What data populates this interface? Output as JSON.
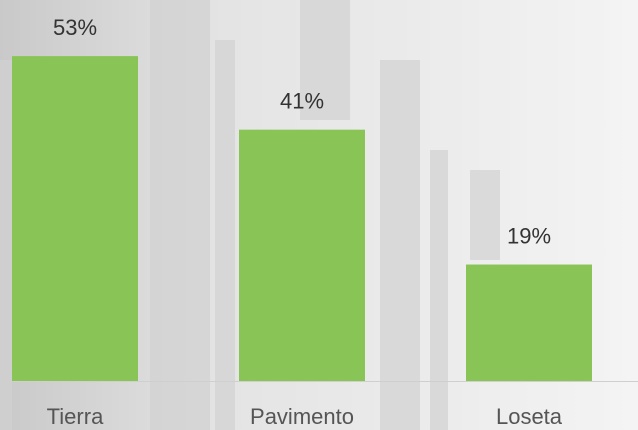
{
  "chart_data": {
    "type": "bar",
    "categories": [
      "Tierra",
      "Pavimento",
      "Loseta"
    ],
    "values": [
      53,
      41,
      19
    ],
    "value_labels": [
      "53%",
      "41%",
      "19%"
    ],
    "color": "#88c556"
  }
}
